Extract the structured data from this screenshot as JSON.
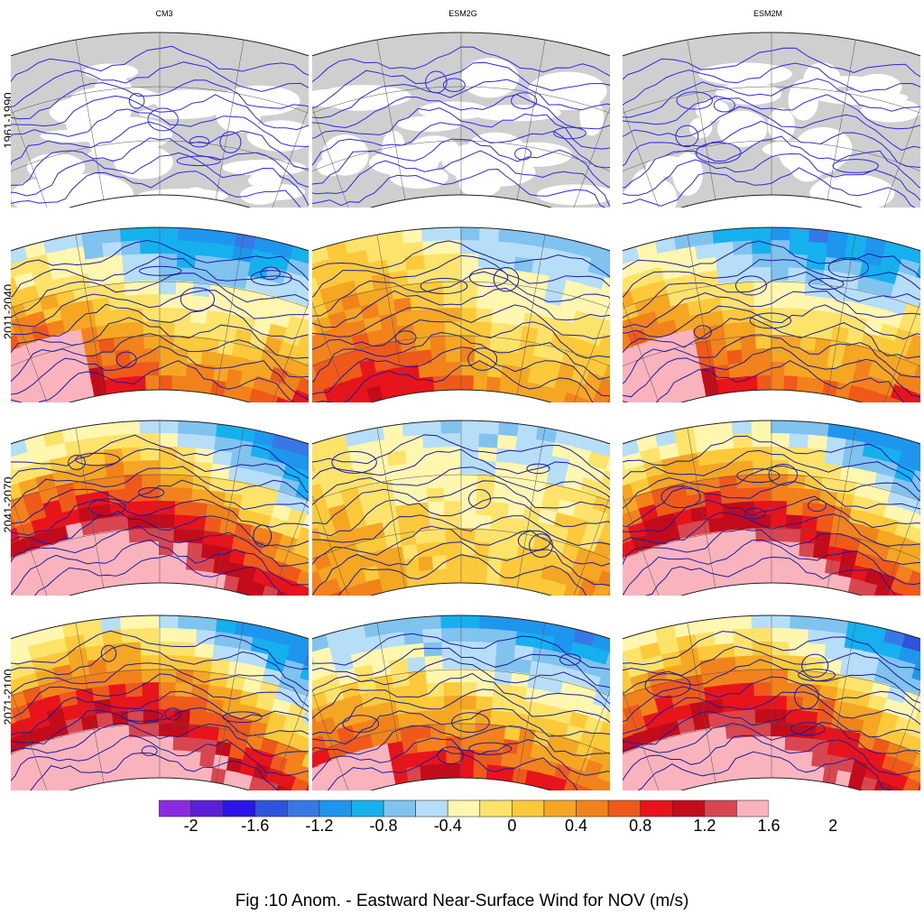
{
  "columns": [
    "CM3",
    "ESM2G",
    "ESM2M"
  ],
  "rows": [
    "1961-1990",
    "2011-2040",
    "2041-2070",
    "2071-2100"
  ],
  "colorbar": {
    "colors": [
      "#8a2be2",
      "#5b1fd6",
      "#2a14e6",
      "#2f53dc",
      "#3778e6",
      "#1f96ee",
      "#16b0ef",
      "#7fc3ee",
      "#b6def6",
      "#fff6b0",
      "#fde36a",
      "#fbc93a",
      "#f5a623",
      "#f2831c",
      "#ef5a1b",
      "#e8141b",
      "#c20c1b",
      "#d8474f",
      "#f9b3bd"
    ],
    "ticks": [
      "-2",
      "-1.6",
      "-1.2",
      "-0.8",
      "-0.4",
      "0",
      "0.4",
      "0.8",
      "1.2",
      "1.6",
      "2"
    ]
  },
  "caption": "Fig :10  Anom.  - Eastward Near-Surface Wind for NOV (m/s)",
  "panel_fill": {
    "CM3": {
      "2011-2040": "warm-west",
      "2041-2070": "strong-warm",
      "2071-2100": "strong-warm"
    },
    "ESM2G": {
      "2011-2040": "mixed",
      "2041-2070": "weak",
      "2071-2100": "moderate-warm"
    },
    "ESM2M": {
      "2011-2040": "warm-west",
      "2041-2070": "strong-warm",
      "2071-2100": "strong-warm"
    }
  }
}
